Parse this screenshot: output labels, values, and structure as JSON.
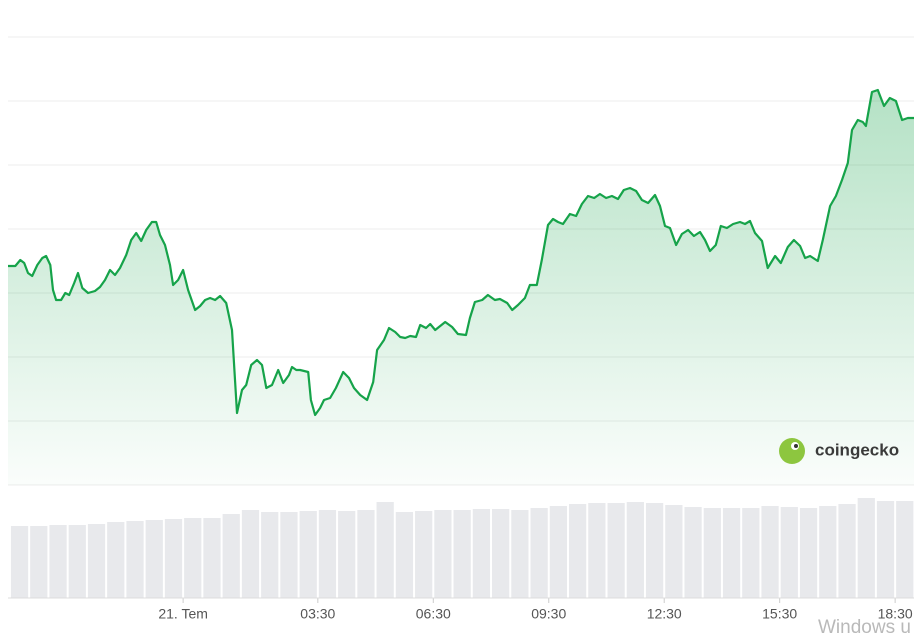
{
  "chart_data": [
    {
      "type": "line",
      "color": "#16a34a",
      "x": [
        -4.55,
        -4.36,
        -4.23,
        -4.13,
        -4.03,
        -3.92,
        -3.79,
        -3.66,
        -3.56,
        -3.45,
        -3.38,
        -3.3,
        -3.17,
        -3.06,
        -2.96,
        -2.83,
        -2.73,
        -2.62,
        -2.47,
        -2.29,
        -2.16,
        -2.03,
        -1.9,
        -1.77,
        -1.64,
        -1.48,
        -1.35,
        -1.22,
        -1.09,
        -0.96,
        -0.81,
        -0.7,
        -0.6,
        -0.47,
        -0.34,
        -0.26,
        -0.13,
        0,
        0.13,
        0.31,
        0.44,
        0.57,
        0.7,
        0.83,
        0.96,
        1.12,
        1.27,
        1.4,
        1.53,
        1.64,
        1.77,
        1.92,
        2.05,
        2.16,
        2.31,
        2.47,
        2.6,
        2.75,
        2.83,
        2.94,
        3.04,
        3.25,
        3.32,
        3.43,
        3.56,
        3.66,
        3.82,
        3.97,
        4.16,
        4.31,
        4.44,
        4.6,
        4.78,
        4.94,
        5.04,
        5.22,
        5.35,
        5.51,
        5.64,
        5.77,
        5.9,
        6.05,
        6.16,
        6.31,
        6.42,
        6.55,
        6.68,
        6.81,
        6.99,
        7.14,
        7.35,
        7.45,
        7.58,
        7.77,
        7.92,
        8.1,
        8.23,
        8.42,
        8.55,
        8.7,
        8.88,
        9.01,
        9.19,
        9.32,
        9.48,
        9.61,
        9.74,
        9.87,
        10.05,
        10.21,
        10.36,
        10.52,
        10.68,
        10.83,
        10.99,
        11.14,
        11.3,
        11.45,
        11.61,
        11.77,
        11.92,
        12.08,
        12.26,
        12.39,
        12.52,
        12.65,
        12.81,
        12.96,
        13.12,
        13.27,
        13.43,
        13.56,
        13.69,
        13.84,
        13.97,
        14.13,
        14.29,
        14.47,
        14.6,
        14.73,
        14.86,
        15.04,
        15.19,
        15.38,
        15.53,
        15.71,
        15.87,
        16.03,
        16.16,
        16.29,
        16.49,
        16.62,
        16.81,
        16.96,
        17.12,
        17.27,
        17.38,
        17.53,
        17.66,
        17.74,
        17.9,
        18.05,
        18.21,
        18.36,
        18.52,
        18.68,
        18.83,
        18.99
      ],
      "values": [
        219,
        219,
        225,
        222,
        212,
        209,
        220,
        227,
        229,
        220,
        195,
        185,
        185,
        192,
        190,
        202,
        212,
        197,
        192,
        194,
        198,
        205,
        215,
        210,
        217,
        230,
        245,
        252,
        244,
        255,
        263,
        263,
        250,
        240,
        220,
        200,
        205,
        215,
        195,
        175,
        179,
        185,
        187,
        185,
        189,
        182,
        155,
        72,
        95,
        100,
        120,
        125,
        120,
        97,
        100,
        115,
        102,
        110,
        118,
        115,
        115,
        113,
        85,
        70,
        77,
        85,
        87,
        97,
        113,
        107,
        97,
        90,
        85,
        103,
        135,
        145,
        157,
        153,
        148,
        147,
        149,
        148,
        160,
        157,
        161,
        155,
        159,
        163,
        158,
        151,
        150,
        167,
        183,
        185,
        190,
        185,
        186,
        182,
        175,
        180,
        187,
        200,
        200,
        225,
        260,
        266,
        263,
        261,
        271,
        269,
        281,
        289,
        287,
        291,
        287,
        289,
        286,
        295,
        297,
        294,
        285,
        282,
        290,
        279,
        259,
        257,
        240,
        251,
        255,
        249,
        253,
        245,
        234,
        240,
        259,
        257,
        261,
        263,
        261,
        264,
        252,
        244,
        217,
        229,
        222,
        238,
        245,
        239,
        227,
        229,
        224,
        245,
        279,
        289,
        305,
        322,
        355,
        365,
        363,
        359,
        393,
        395,
        379,
        387,
        384,
        365,
        367,
        367
      ],
      "xlim": [
        -4.55,
        18.99
      ],
      "ylim": [
        0,
        480
      ],
      "ygrid": [
        0,
        64,
        128,
        192,
        256,
        320,
        384,
        448
      ],
      "xticks": [
        {
          "value": 0,
          "label": "21. Tem"
        },
        {
          "value": 3.5,
          "label": "03:30"
        },
        {
          "value": 6.5,
          "label": "06:30"
        },
        {
          "value": 9.5,
          "label": "09:30"
        },
        {
          "value": 12.5,
          "label": "12:30"
        },
        {
          "value": 15.5,
          "label": "15:30"
        },
        {
          "value": 18.5,
          "label": "18:30"
        }
      ]
    },
    {
      "type": "bar",
      "color": "#e8e9ec",
      "x": [
        -4.25,
        -3.75,
        -3.25,
        -2.75,
        -2.25,
        -1.75,
        -1.25,
        -0.75,
        -0.25,
        0.25,
        0.75,
        1.25,
        1.75,
        2.25,
        2.75,
        3.25,
        3.75,
        4.25,
        4.75,
        5.25,
        5.75,
        6.25,
        6.75,
        7.25,
        7.75,
        8.25,
        8.75,
        9.25,
        9.75,
        10.25,
        10.75,
        11.25,
        11.75,
        12.25,
        12.75,
        13.25,
        13.75,
        14.25,
        14.75,
        15.25,
        15.75,
        16.25,
        16.75,
        17.25,
        17.75,
        18.25,
        18.75
      ],
      "values": [
        72,
        72,
        73,
        73,
        74,
        76,
        77,
        78,
        79,
        80,
        80,
        84,
        88,
        86,
        86,
        87,
        88,
        87,
        88,
        96,
        86,
        87,
        88,
        88,
        89,
        89,
        88,
        90,
        92,
        94,
        95,
        95,
        96,
        95,
        93,
        91,
        90,
        90,
        90,
        92,
        91,
        90,
        92,
        94,
        100,
        97,
        97
      ],
      "xlim": [
        -4.55,
        18.99
      ],
      "ylim": [
        0,
        113
      ]
    }
  ],
  "logo": "coingecko",
  "watermark": "Windows u"
}
